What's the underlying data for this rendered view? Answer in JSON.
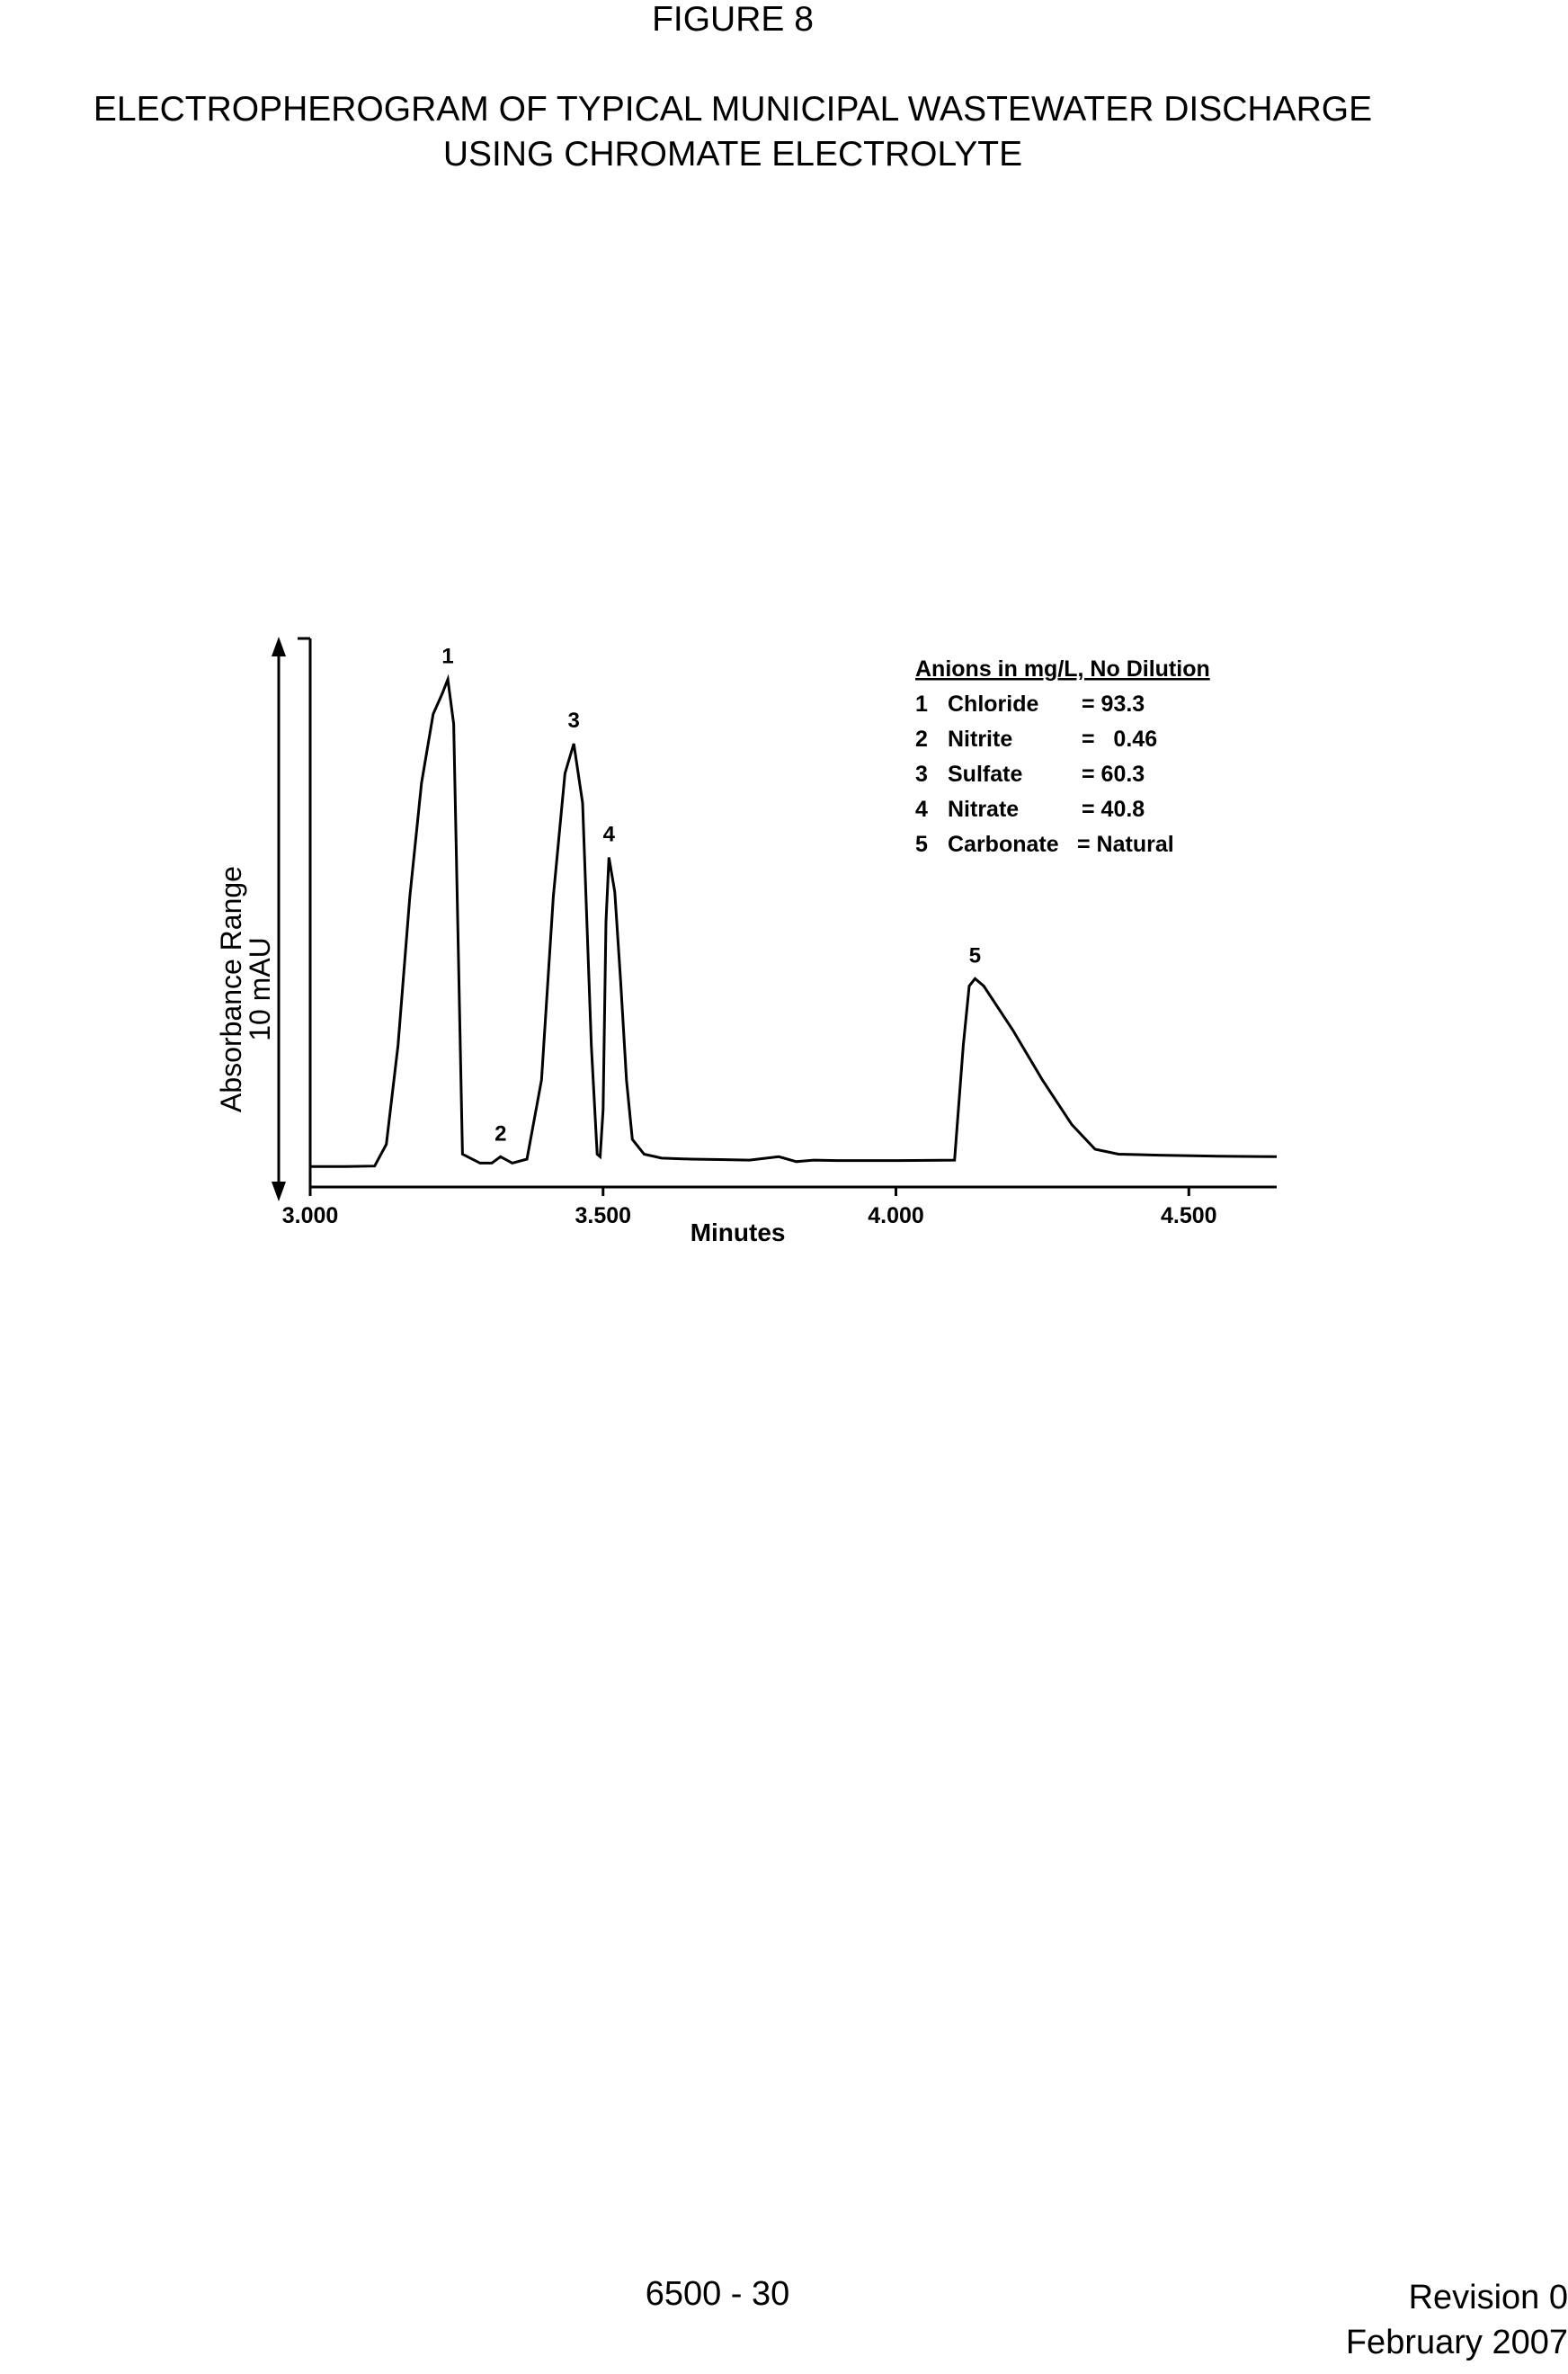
{
  "page": {
    "figure_label": "FIGURE 8",
    "title_line1": "ELECTROPHEROGRAM OF TYPICAL MUNICIPAL WASTEWATER DISCHARGE",
    "title_line2": "USING CHROMATE ELECTROLYTE",
    "page_number": "6500 - 30",
    "revision": "Revision 0",
    "date": "February 2007"
  },
  "chart_data": {
    "type": "line",
    "title": "",
    "xlabel": "Minutes",
    "ylabel_line1": "Absorbance Range",
    "ylabel_line2": "10 mAU",
    "xlim": [
      3.0,
      4.65
    ],
    "ylim": [
      0,
      10
    ],
    "x_ticks": [
      3.0,
      3.5,
      4.0,
      4.5
    ],
    "x_tick_labels": [
      "3.000",
      "3.500",
      "4.000",
      "4.500"
    ],
    "grid": false,
    "series": [
      {
        "x": [
          3.0,
          3.06,
          3.11,
          3.13,
          3.15,
          3.17,
          3.19,
          3.21,
          3.225,
          3.235,
          3.245,
          3.26,
          3.29,
          3.31,
          3.325,
          3.345,
          3.37,
          3.395,
          3.415,
          3.435,
          3.45,
          3.465,
          3.48,
          3.49,
          3.495,
          3.5,
          3.505,
          3.51,
          3.52,
          3.53,
          3.54,
          3.55,
          3.57,
          3.6,
          3.65,
          3.7,
          3.75,
          3.8,
          3.83,
          3.86,
          3.9,
          4.0,
          4.1,
          4.115,
          4.125,
          4.135,
          4.15,
          4.2,
          4.25,
          4.3,
          4.34,
          4.38,
          4.45,
          4.55,
          4.65
        ],
        "y": [
          0.05,
          0.05,
          0.06,
          0.5,
          2.5,
          5.5,
          7.8,
          9.2,
          9.6,
          9.9,
          9.0,
          0.3,
          0.12,
          0.12,
          0.25,
          0.12,
          0.2,
          1.8,
          5.5,
          8.0,
          8.6,
          7.4,
          2.5,
          0.3,
          0.25,
          1.2,
          5.0,
          6.3,
          5.6,
          3.8,
          1.8,
          0.6,
          0.3,
          0.22,
          0.2,
          0.19,
          0.18,
          0.25,
          0.15,
          0.18,
          0.17,
          0.17,
          0.18,
          2.5,
          3.7,
          3.85,
          3.7,
          2.8,
          1.8,
          0.9,
          0.4,
          0.3,
          0.28,
          0.26,
          0.25
        ]
      }
    ],
    "peak_labels": [
      {
        "label": "1",
        "x": 3.235,
        "y": 9.9
      },
      {
        "label": "2",
        "x": 3.325,
        "y": 0.25
      },
      {
        "label": "3",
        "x": 3.45,
        "y": 8.6
      },
      {
        "label": "4",
        "x": 3.51,
        "y": 6.3
      },
      {
        "label": "5",
        "x": 4.135,
        "y": 3.85
      }
    ],
    "annotation": {
      "heading": "Anions in mg/L, No Dilution",
      "rows": [
        {
          "num": "1",
          "name": "Chloride",
          "value": "= 93.3"
        },
        {
          "num": "2",
          "name": "Nitrite",
          "value": "=   0.46"
        },
        {
          "num": "3",
          "name": "Sulfate",
          "value": "= 60.3"
        },
        {
          "num": "4",
          "name": "Nitrate",
          "value": "= 40.8"
        },
        {
          "num": "5",
          "name": "Carbonate",
          "value": "= Natural"
        }
      ]
    }
  }
}
